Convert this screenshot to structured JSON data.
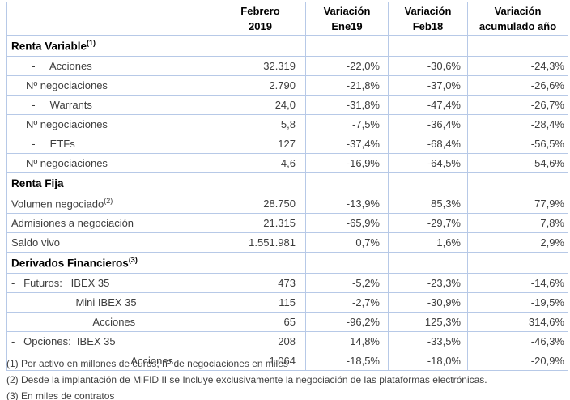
{
  "table": {
    "header": [
      {
        "line1": "Febrero",
        "line2": "2019"
      },
      {
        "line1": "Variación",
        "line2": "Ene19"
      },
      {
        "line1": "Variación",
        "line2": "Feb18"
      },
      {
        "line1": "Variación",
        "line2": "acumulado año"
      }
    ],
    "rows": [
      {
        "style": "section",
        "label": "Renta Variable",
        "sup": "(1)",
        "values": [
          "",
          "",
          "",
          ""
        ]
      },
      {
        "style": "data",
        "label": "       -     Acciones",
        "sup": "",
        "values": [
          "32.319",
          "-22,0%",
          "-30,6%",
          "-24,3%"
        ]
      },
      {
        "style": "data",
        "label": "     Nº negociaciones",
        "sup": "",
        "values": [
          "2.790",
          "-21,8%",
          "-37,0%",
          "-26,6%"
        ]
      },
      {
        "style": "data",
        "label": "       -     Warrants",
        "sup": "",
        "values": [
          "24,0",
          "-31,8%",
          "-47,4%",
          "-26,7%"
        ]
      },
      {
        "style": "data",
        "label": "     Nº negociaciones",
        "sup": "",
        "values": [
          "5,8",
          "-7,5%",
          "-36,4%",
          "-28,4%"
        ]
      },
      {
        "style": "data",
        "label": "       -     ETFs",
        "sup": "",
        "values": [
          "127",
          "-37,4%",
          "-68,4%",
          "-56,5%"
        ]
      },
      {
        "style": "data",
        "label": "     Nº negociaciones",
        "sup": "",
        "values": [
          "4,6",
          "-16,9%",
          "-64,5%",
          "-54,6%"
        ]
      },
      {
        "style": "section",
        "label": "Renta Fija",
        "sup": "",
        "values": [
          "",
          "",
          "",
          ""
        ]
      },
      {
        "style": "data",
        "label": "Volumen negociado",
        "sup": "(2)",
        "values": [
          "28.750",
          "-13,9%",
          "85,3%",
          "77,9%"
        ]
      },
      {
        "style": "data",
        "label": "Admisiones a negociación",
        "sup": "",
        "values": [
          "21.315",
          "-65,9%",
          "-29,7%",
          "7,8%"
        ]
      },
      {
        "style": "data",
        "label": "Saldo vivo",
        "sup": "",
        "values": [
          "1.551.981",
          "0,7%",
          "1,6%",
          "2,9%"
        ]
      },
      {
        "style": "section",
        "label": "Derivados Financieros",
        "sup": "(3)",
        "values": [
          "",
          "",
          "",
          ""
        ]
      },
      {
        "style": "data",
        "label": "-   Futuros:   IBEX 35",
        "sup": "",
        "values": [
          "473",
          "-5,2%",
          "-23,3%",
          "-14,6%"
        ]
      },
      {
        "style": "data",
        "label": "                      Mini IBEX 35",
        "sup": "",
        "values": [
          "115",
          "-2,7%",
          "-30,9%",
          "-19,5%"
        ]
      },
      {
        "style": "data",
        "label": "                            Acciones",
        "sup": "",
        "values": [
          "65",
          "-96,2%",
          "125,3%",
          "314,6%"
        ]
      },
      {
        "style": "data",
        "label": "-   Opciones:  IBEX 35",
        "sup": "",
        "values": [
          "208",
          "14,8%",
          "-33,5%",
          "-46,3%"
        ]
      },
      {
        "style": "data",
        "label": "                                         Acciones",
        "sup": "",
        "values": [
          "1.064",
          "-18,5%",
          "-18,0%",
          "-20,9%"
        ]
      }
    ]
  },
  "footnotes": [
    "(1) Por activo en millones de euros; nº de negociaciones en miles",
    "(2) Desde la implantación de MiFID II se Incluye exclusivamente la negociación de las plataformas electrónicas.",
    "(3) En miles de contratos"
  ],
  "colors": {
    "border_thin": "#b7c9e7",
    "border_thick": "#8fa5d1",
    "body_text": "#3d3d3d",
    "section_text": "#000000",
    "footnote_text": "#3f3f3f"
  }
}
